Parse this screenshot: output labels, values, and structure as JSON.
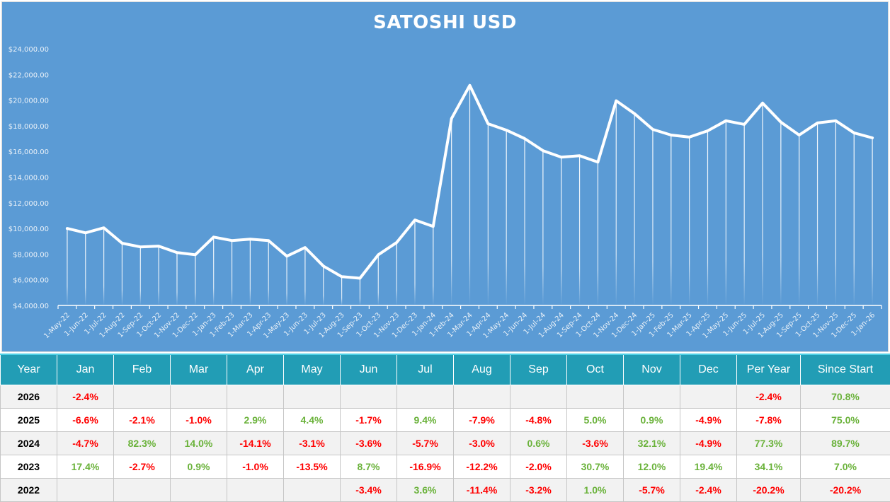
{
  "chart_data": {
    "type": "line",
    "title": "SATOSHI USD",
    "xlabel": "",
    "ylabel": "",
    "ylim": [
      4000,
      24000
    ],
    "y_ticks": [
      "$4,000.00",
      "$6,000.00",
      "$8,000.00",
      "$10,000.00",
      "$12,000.00",
      "$14,000.00",
      "$16,000.00",
      "$18,000.00",
      "$20,000.00",
      "$22,000.00",
      "$24,000.00"
    ],
    "grid": false,
    "legend": "none",
    "drop_lines": true,
    "categories": [
      "1-May-22",
      "1-Jun-22",
      "1-Jul-22",
      "1-Aug-22",
      "1-Sep-22",
      "1-Oct-22",
      "1-Nov-22",
      "1-Dec-22",
      "1-Jan-23",
      "1-Feb-23",
      "1-Mar-23",
      "1-Apr-23",
      "1-May-23",
      "1-Jun-23",
      "1-Jul-23",
      "1-Aug-23",
      "1-Sep-23",
      "1-Oct-23",
      "1-Nov-23",
      "1-Dec-23",
      "1-Jan-24",
      "1-Feb-24",
      "1-Mar-24",
      "1-Apr-24",
      "1-May-24",
      "1-Jun-24",
      "1-Jul-24",
      "1-Aug-24",
      "1-Sep-24",
      "1-Oct-24",
      "1-Nov-24",
      "1-Dec-24",
      "1-Jan-25",
      "1-Feb-25",
      "1-Mar-25",
      "1-Apr-25",
      "1-May-25",
      "1-Jun-25",
      "1-Jul-25",
      "1-Aug-25",
      "1-Sep-25",
      "1-Oct-25",
      "1-Nov-25",
      "1-Dec-25",
      "1-Jan-26"
    ],
    "series": [
      {
        "name": "SATOSHI USD",
        "color": "#FFFFFF",
        "values": [
          10000,
          9660,
          10050,
          8850,
          8560,
          8620,
          8120,
          7950,
          9330,
          9060,
          9170,
          9060,
          7840,
          8510,
          7070,
          6240,
          6120,
          7950,
          8900,
          10660,
          10160,
          18560,
          21150,
          18160,
          17660,
          17000,
          16060,
          15560,
          15670,
          15170,
          19950,
          18950,
          17720,
          17280,
          17120,
          17610,
          18390,
          18110,
          19770,
          18280,
          17280,
          18220,
          18390,
          17450,
          17060
        ]
      }
    ]
  },
  "colors": {
    "chart_bg": "#5B9BD5",
    "header_bg": "#229DB5",
    "positive": "#6AB23A",
    "negative": "#FF0000"
  },
  "table": {
    "headers": [
      "Year",
      "Jan",
      "Feb",
      "Mar",
      "Apr",
      "May",
      "Jun",
      "Jul",
      "Aug",
      "Sep",
      "Oct",
      "Nov",
      "Dec",
      "Per Year",
      "Since Start"
    ],
    "rows": [
      [
        "2026",
        "-2.4%",
        "",
        "",
        "",
        "",
        "",
        "",
        "",
        "",
        "",
        "",
        "",
        "-2.4%",
        "70.8%"
      ],
      [
        "2025",
        "-6.6%",
        "-2.1%",
        "-1.0%",
        "2.9%",
        "4.4%",
        "-1.7%",
        "9.4%",
        "-7.9%",
        "-4.8%",
        "5.0%",
        "0.9%",
        "-4.9%",
        "-7.8%",
        "75.0%"
      ],
      [
        "2024",
        "-4.7%",
        "82.3%",
        "14.0%",
        "-14.1%",
        "-3.1%",
        "-3.6%",
        "-5.7%",
        "-3.0%",
        "0.6%",
        "-3.6%",
        "32.1%",
        "-4.9%",
        "77.3%",
        "89.7%"
      ],
      [
        "2023",
        "17.4%",
        "-2.7%",
        "0.9%",
        "-1.0%",
        "-13.5%",
        "8.7%",
        "-16.9%",
        "-12.2%",
        "-2.0%",
        "30.7%",
        "12.0%",
        "19.4%",
        "34.1%",
        "7.0%"
      ],
      [
        "2022",
        "",
        "",
        "",
        "",
        "",
        "-3.4%",
        "3.6%",
        "-11.4%",
        "-3.2%",
        "1.0%",
        "-5.7%",
        "-2.4%",
        "-20.2%",
        "-20.2%"
      ]
    ]
  }
}
